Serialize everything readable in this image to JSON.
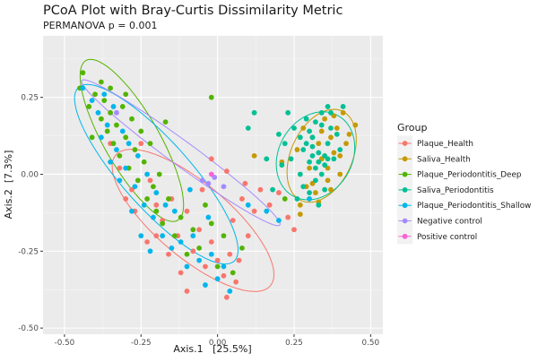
{
  "chart_data": {
    "type": "scatter",
    "title": "PCoA Plot with Bray-Curtis Dissimilarity Metric",
    "subtitle": "PERMANOVA p = 0.001",
    "xlabel": "Axis.1   [25.5%]",
    "ylabel": "Axis.2  [7.3%]",
    "xlim": [
      -0.57,
      0.54
    ],
    "ylim": [
      -0.52,
      0.45
    ],
    "xticks": [
      -0.5,
      -0.25,
      0.0,
      0.25,
      0.5
    ],
    "xtick_labels": [
      "-0.50",
      "-0.25",
      "0.00",
      "0.25",
      "0.50"
    ],
    "yticks": [
      -0.5,
      -0.25,
      0.0,
      0.25
    ],
    "ytick_labels": [
      "-0.50",
      "-0.25",
      "0.00",
      "0.25"
    ],
    "grid": true,
    "legend": {
      "title": "Group",
      "placement": "right"
    },
    "series": [
      {
        "name": "Plaque_Health",
        "color": "#F8766D",
        "ellipse": {
          "cx": -0.08,
          "cy": -0.15,
          "rx": 0.33,
          "ry": 0.12,
          "angle_deg": -40
        },
        "points": [
          [
            -0.32,
            0.02
          ],
          [
            -0.28,
            -0.05
          ],
          [
            -0.25,
            0.1
          ],
          [
            -0.22,
            -0.02
          ],
          [
            -0.2,
            -0.1
          ],
          [
            -0.18,
            -0.15
          ],
          [
            -0.15,
            -0.08
          ],
          [
            -0.13,
            -0.2
          ],
          [
            -0.1,
            -0.12
          ],
          [
            -0.08,
            -0.25
          ],
          [
            -0.06,
            -0.18
          ],
          [
            -0.04,
            -0.3
          ],
          [
            -0.02,
            -0.22
          ],
          [
            0.0,
            -0.28
          ],
          [
            0.02,
            -0.33
          ],
          [
            0.04,
            -0.26
          ],
          [
            0.06,
            -0.35
          ],
          [
            -0.12,
            -0.32
          ],
          [
            -0.16,
            -0.26
          ],
          [
            -0.2,
            -0.2
          ],
          [
            -0.05,
            -0.05
          ],
          [
            0.05,
            -0.15
          ],
          [
            0.08,
            -0.08
          ],
          [
            0.1,
            -0.2
          ],
          [
            0.12,
            -0.12
          ],
          [
            -0.02,
            0.05
          ],
          [
            0.03,
            0.01
          ],
          [
            0.14,
            -0.05
          ],
          [
            0.17,
            -0.1
          ],
          [
            0.2,
            -0.06
          ],
          [
            0.23,
            -0.14
          ],
          [
            0.25,
            -0.18
          ],
          [
            -0.27,
            -0.12
          ],
          [
            -0.23,
            -0.22
          ],
          [
            -0.1,
            -0.38
          ],
          [
            0.03,
            -0.4
          ],
          [
            0.07,
            -0.28
          ],
          [
            -0.35,
            0.1
          ],
          [
            -0.3,
            -0.08
          ],
          [
            0.09,
            -0.03
          ]
        ]
      },
      {
        "name": "Saliva_Health",
        "color": "#C49A00",
        "ellipse": {
          "cx": 0.34,
          "cy": 0.06,
          "rx": 0.16,
          "ry": 0.1,
          "angle_deg": 65
        },
        "points": [
          [
            0.26,
            0.08
          ],
          [
            0.28,
            0.15
          ],
          [
            0.3,
            0.02
          ],
          [
            0.31,
            -0.03
          ],
          [
            0.33,
            0.1
          ],
          [
            0.34,
            0.05
          ],
          [
            0.35,
            0.18
          ],
          [
            0.36,
            -0.02
          ],
          [
            0.37,
            0.12
          ],
          [
            0.38,
            0.07
          ],
          [
            0.39,
            0.15
          ],
          [
            0.4,
            0.0
          ],
          [
            0.41,
            0.2
          ],
          [
            0.42,
            0.1
          ],
          [
            0.3,
            -0.08
          ],
          [
            0.32,
            -0.06
          ],
          [
            0.34,
            0.14
          ],
          [
            0.36,
            0.02
          ],
          [
            0.38,
            0.19
          ],
          [
            0.4,
            0.06
          ],
          [
            0.27,
            -0.1
          ],
          [
            0.29,
            -0.04
          ],
          [
            0.33,
            -0.09
          ],
          [
            0.37,
            -0.05
          ],
          [
            0.43,
            0.13
          ],
          [
            0.12,
            0.06
          ],
          [
            0.21,
            0.04
          ],
          [
            0.27,
            -0.13
          ],
          [
            0.45,
            0.16
          ],
          [
            0.31,
            0.12
          ]
        ]
      },
      {
        "name": "Plaque_Periodontitis_Deep",
        "color": "#53B400",
        "ellipse": {
          "cx": -0.28,
          "cy": 0.11,
          "rx": 0.3,
          "ry": 0.09,
          "angle_deg": -60
        },
        "points": [
          [
            -0.45,
            0.28
          ],
          [
            -0.42,
            0.22
          ],
          [
            -0.4,
            0.26
          ],
          [
            -0.38,
            0.18
          ],
          [
            -0.37,
            0.24
          ],
          [
            -0.36,
            0.14
          ],
          [
            -0.35,
            0.2
          ],
          [
            -0.34,
            0.1
          ],
          [
            -0.33,
            0.16
          ],
          [
            -0.32,
            0.06
          ],
          [
            -0.31,
            0.22
          ],
          [
            -0.3,
            0.12
          ],
          [
            -0.29,
            0.02
          ],
          [
            -0.28,
            0.18
          ],
          [
            -0.27,
            0.08
          ],
          [
            -0.26,
            -0.02
          ],
          [
            -0.25,
            0.14
          ],
          [
            -0.24,
            0.04
          ],
          [
            -0.23,
            -0.08
          ],
          [
            -0.22,
            0.1
          ],
          [
            -0.21,
            -0.04
          ],
          [
            -0.2,
            -0.12
          ],
          [
            -0.19,
            0.0
          ],
          [
            -0.18,
            -0.16
          ],
          [
            -0.16,
            -0.08
          ],
          [
            -0.14,
            -0.2
          ],
          [
            -0.12,
            -0.14
          ],
          [
            -0.1,
            -0.26
          ],
          [
            -0.08,
            -0.18
          ],
          [
            -0.06,
            -0.24
          ],
          [
            -0.04,
            -0.1
          ],
          [
            -0.02,
            -0.16
          ],
          [
            0.0,
            -0.3
          ],
          [
            0.02,
            -0.2
          ],
          [
            -0.38,
            0.3
          ],
          [
            -0.44,
            0.33
          ],
          [
            -0.35,
            0.28
          ],
          [
            -0.3,
            0.26
          ],
          [
            0.05,
            -0.32
          ],
          [
            0.08,
            -0.24
          ],
          [
            -0.17,
            0.17
          ],
          [
            -0.02,
            0.25
          ],
          [
            0.22,
            -0.08
          ],
          [
            -0.41,
            0.12
          ]
        ]
      },
      {
        "name": "Saliva_Periodontitis",
        "color": "#00C094",
        "ellipse": {
          "cx": 0.32,
          "cy": 0.06,
          "rx": 0.15,
          "ry": 0.12,
          "angle_deg": 60
        },
        "points": [
          [
            0.22,
            0.1
          ],
          [
            0.24,
            0.05
          ],
          [
            0.25,
            0.15
          ],
          [
            0.27,
            0.0
          ],
          [
            0.28,
            0.08
          ],
          [
            0.29,
            0.18
          ],
          [
            0.3,
            0.04
          ],
          [
            0.31,
            0.12
          ],
          [
            0.32,
            -0.02
          ],
          [
            0.33,
            0.07
          ],
          [
            0.34,
            0.16
          ],
          [
            0.35,
            0.03
          ],
          [
            0.36,
            0.1
          ],
          [
            0.37,
            0.2
          ],
          [
            0.38,
            0.05
          ],
          [
            0.39,
            0.13
          ],
          [
            0.4,
            0.08
          ],
          [
            0.32,
            0.02
          ],
          [
            0.34,
            0.0
          ],
          [
            0.33,
            0.04
          ],
          [
            0.35,
            0.06
          ],
          [
            0.36,
            0.05
          ],
          [
            0.31,
            0.06
          ],
          [
            0.3,
            -0.06
          ],
          [
            0.28,
            -0.04
          ],
          [
            0.26,
            -0.08
          ],
          [
            0.33,
            -0.1
          ],
          [
            0.35,
            -0.05
          ],
          [
            0.37,
            0.15
          ],
          [
            0.29,
            0.1
          ],
          [
            0.3,
            0.14
          ],
          [
            0.32,
            0.17
          ],
          [
            0.34,
            0.2
          ],
          [
            0.36,
            0.22
          ],
          [
            0.41,
            0.22
          ],
          [
            0.2,
            0.13
          ],
          [
            0.21,
            0.03
          ],
          [
            0.16,
            0.05
          ],
          [
            0.12,
            0.2
          ],
          [
            0.1,
            0.15
          ],
          [
            0.23,
            0.2
          ],
          [
            0.18,
            -0.05
          ],
          [
            0.27,
            0.12
          ],
          [
            0.31,
            0.09
          ]
        ]
      },
      {
        "name": "Plaque_Periodontitis_Shallow",
        "color": "#00B6EB",
        "ellipse": {
          "cx": -0.2,
          "cy": 0.0,
          "rx": 0.38,
          "ry": 0.11,
          "angle_deg": -48
        },
        "points": [
          [
            -0.44,
            0.28
          ],
          [
            -0.41,
            0.24
          ],
          [
            -0.39,
            0.2
          ],
          [
            -0.37,
            0.26
          ],
          [
            -0.36,
            0.16
          ],
          [
            -0.34,
            0.22
          ],
          [
            -0.33,
            0.08
          ],
          [
            -0.31,
            0.14
          ],
          [
            -0.3,
            0.02
          ],
          [
            -0.29,
            0.1
          ],
          [
            -0.27,
            -0.04
          ],
          [
            -0.26,
            0.06
          ],
          [
            -0.24,
            -0.1
          ],
          [
            -0.23,
            0.0
          ],
          [
            -0.21,
            -0.14
          ],
          [
            -0.2,
            -0.06
          ],
          [
            -0.18,
            -0.2
          ],
          [
            -0.17,
            -0.1
          ],
          [
            -0.15,
            -0.24
          ],
          [
            -0.14,
            -0.12
          ],
          [
            -0.12,
            -0.22
          ],
          [
            -0.1,
            -0.3
          ],
          [
            -0.08,
            -0.2
          ],
          [
            -0.06,
            -0.28
          ],
          [
            -0.04,
            -0.36
          ],
          [
            -0.02,
            -0.26
          ],
          [
            0.0,
            -0.34
          ],
          [
            0.02,
            -0.3
          ],
          [
            0.04,
            -0.38
          ],
          [
            -0.38,
            0.12
          ],
          [
            -0.35,
            0.04
          ],
          [
            -0.32,
            -0.02
          ],
          [
            -0.28,
            -0.12
          ],
          [
            -0.25,
            -0.2
          ],
          [
            -0.22,
            -0.25
          ],
          [
            0.1,
            -0.1
          ],
          [
            0.16,
            -0.12
          ],
          [
            0.3,
            -0.08
          ],
          [
            0.2,
            -0.15
          ],
          [
            -0.09,
            -0.05
          ],
          [
            -0.03,
            -0.14
          ]
        ]
      },
      {
        "name": "Negative control",
        "color": "#A58AFF",
        "ellipse": {
          "cx": -0.12,
          "cy": 0.07,
          "rx": 0.4,
          "ry": 0.04,
          "angle_deg": -36
        },
        "points": [
          [
            -0.33,
            0.2
          ],
          [
            -0.05,
            -0.02
          ],
          [
            -0.03,
            -0.03
          ],
          [
            -0.01,
            -0.01
          ],
          [
            0.02,
            -0.04
          ]
        ]
      },
      {
        "name": "Positive control",
        "color": "#FB61D7",
        "ellipse": null,
        "points": [
          [
            -0.02,
            0.0
          ]
        ]
      }
    ]
  }
}
